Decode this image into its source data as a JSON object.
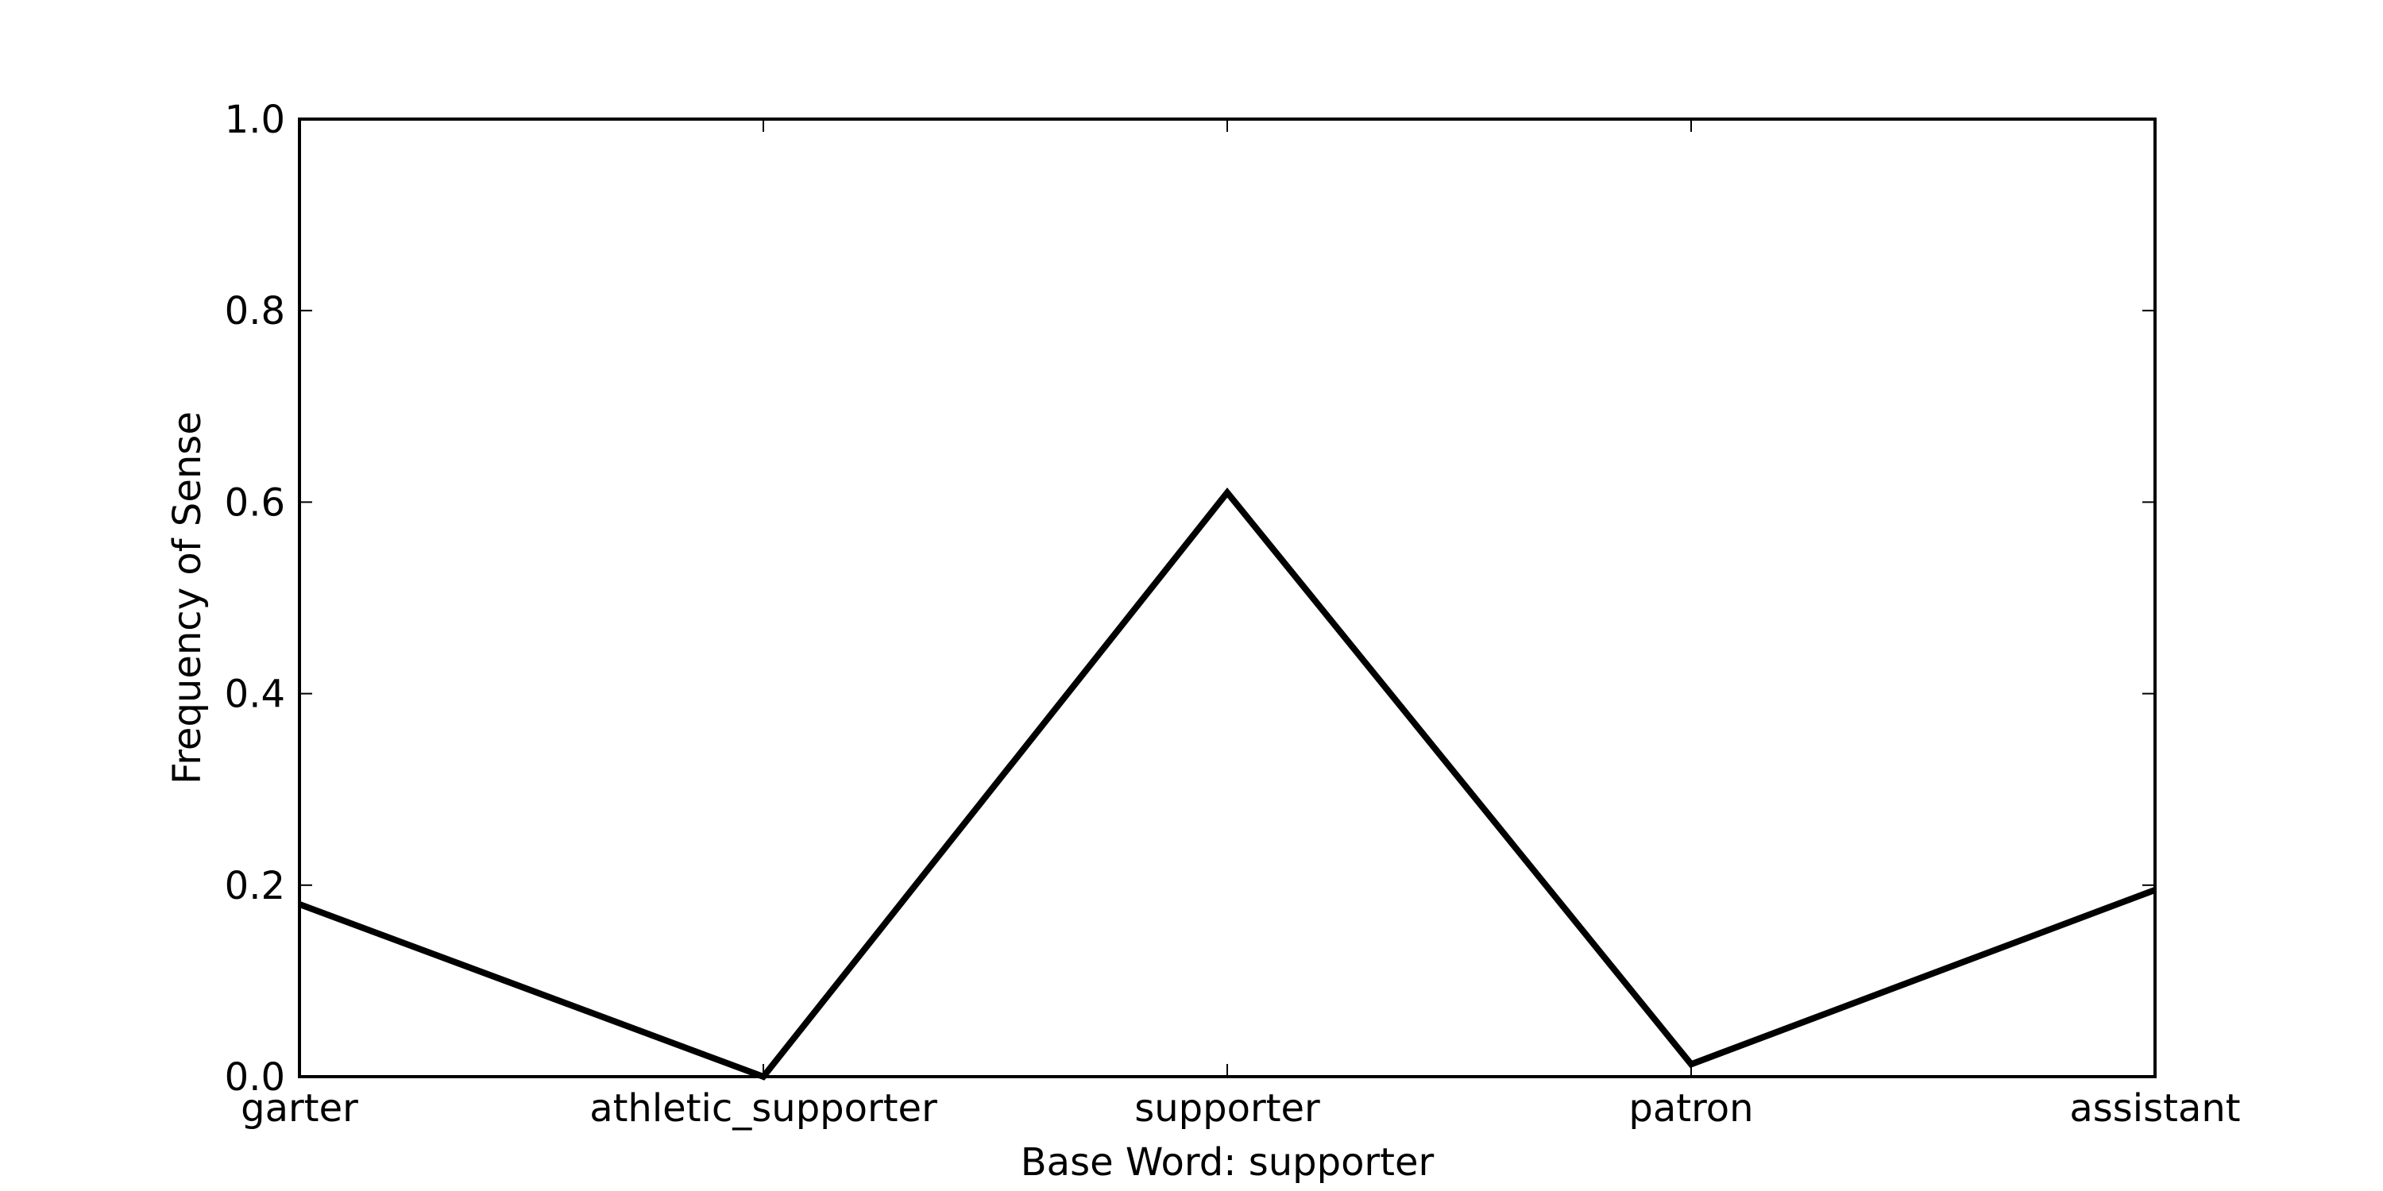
{
  "chart_data": {
    "type": "line",
    "title": "",
    "xlabel": "Base Word: supporter",
    "ylabel": "Frequency of Sense",
    "categories": [
      "garter",
      "athletic_supporter",
      "supporter",
      "patron",
      "assistant"
    ],
    "series": [
      {
        "values": [
          0.18,
          0.0,
          0.61,
          0.013,
          0.195
        ]
      }
    ],
    "ylim": [
      0,
      1
    ],
    "yticks": [
      "0.0",
      "0.2",
      "0.4",
      "0.6",
      "0.8",
      "1.0"
    ],
    "grid": false,
    "legend": "none",
    "line_color": "#000000"
  }
}
